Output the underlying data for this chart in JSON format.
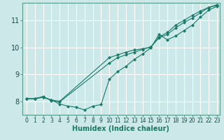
{
  "xlabel": "Humidex (Indice chaleur)",
  "bg_color": "#cce8e8",
  "grid_color": "#aad4d4",
  "line_color": "#1a7a6a",
  "xlim": [
    0,
    23
  ],
  "ylim": [
    7.5,
    11.65
  ],
  "x_ticks": [
    0,
    1,
    2,
    3,
    4,
    5,
    6,
    7,
    8,
    9,
    10,
    11,
    12,
    13,
    14,
    15,
    16,
    17,
    18,
    19,
    20,
    21,
    22,
    23
  ],
  "y_ticks": [
    8,
    9,
    10,
    11
  ],
  "series": [
    {
      "x": [
        0,
        1,
        2,
        3,
        4,
        5,
        6,
        7,
        8,
        9,
        10,
        11,
        12,
        13,
        14,
        15,
        16,
        17,
        18,
        19,
        20,
        21,
        22,
        23
      ],
      "y": [
        8.1,
        8.1,
        8.15,
        8.05,
        7.9,
        7.82,
        7.78,
        7.68,
        7.82,
        7.88,
        8.82,
        9.1,
        9.3,
        9.55,
        9.75,
        9.98,
        10.48,
        10.28,
        10.42,
        10.62,
        10.82,
        11.12,
        11.38,
        11.52
      ]
    },
    {
      "x": [
        0,
        1,
        2,
        3,
        4,
        10,
        11,
        12,
        13,
        14,
        15,
        16,
        17,
        18,
        19,
        20,
        21,
        22,
        23
      ],
      "y": [
        8.1,
        8.1,
        8.15,
        8.05,
        8.0,
        9.62,
        9.72,
        9.82,
        9.9,
        9.95,
        10.0,
        10.38,
        10.55,
        10.82,
        11.0,
        11.18,
        11.35,
        11.48,
        11.58
      ]
    },
    {
      "x": [
        0,
        1,
        2,
        3,
        4,
        10,
        11,
        12,
        13,
        14,
        15,
        16,
        17,
        18,
        19,
        20,
        21,
        22,
        23
      ],
      "y": [
        8.1,
        8.1,
        8.18,
        8.02,
        7.98,
        9.42,
        9.62,
        9.72,
        9.82,
        9.92,
        10.02,
        10.35,
        10.48,
        10.72,
        10.92,
        11.08,
        11.28,
        11.48,
        11.55
      ]
    }
  ]
}
